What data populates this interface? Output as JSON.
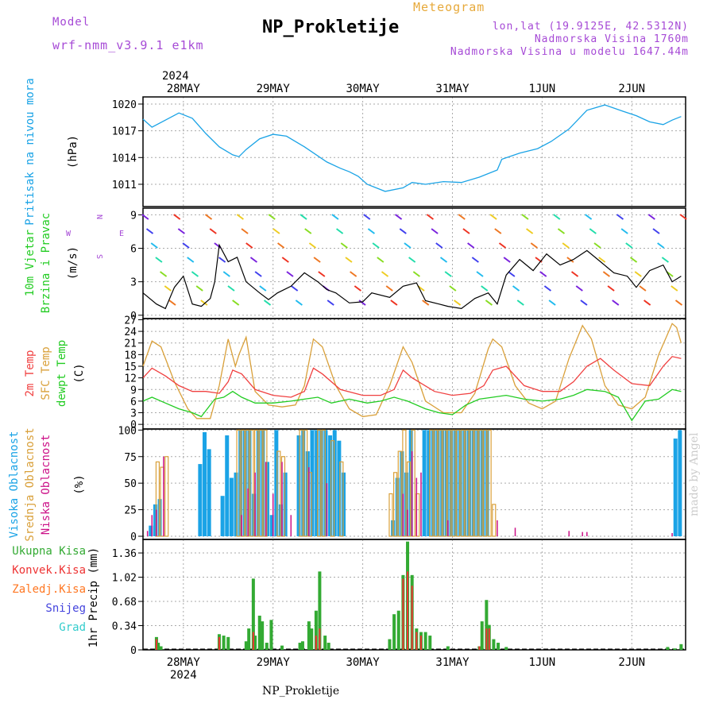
{
  "header": {
    "model_label": "Model",
    "model_name": "wrf-nmm_v3.9.1 e1km",
    "title": "NP_Prokletije",
    "meteogram": "Meteogram",
    "lonlat": "lon,lat (19.9125E, 42.5312N)",
    "altitude": "Nadmorska Visina 1760m",
    "model_altitude": "Nadmorska Visina u modelu 1647.44m"
  },
  "footer": {
    "station": "NP_Prokletije",
    "watermark": "made by Angel"
  },
  "colors": {
    "pressure": "#1aa3e6",
    "wind_label": "#22cc22",
    "temp2m": "#f04040",
    "sfc": "#d9a03a",
    "dewpt": "#22cc22",
    "high_cloud": "#1aa3e6",
    "mid_cloud": "#d9a03a",
    "low_cloud": "#cc1188",
    "total_precip": "#33aa33",
    "conv_precip": "#ee3333",
    "frozen": "#ff7722",
    "snow": "#4444dd",
    "graupel": "#33cccc"
  },
  "chart_data": [
    {
      "type": "line",
      "title": "",
      "ylabel": [
        "Pritisak na nivou mora",
        "(hPa)"
      ],
      "yticks": [
        "1011",
        "1014",
        "1017",
        "1020"
      ],
      "ylim": [
        1008.5,
        1020.8
      ],
      "xlim": [
        -0.45,
        5.6
      ],
      "top_ticks": {
        "year": "2024",
        "labels": [
          "28MAY",
          "29MAY",
          "30MAY",
          "31MAY",
          "1JUN",
          "2JUN"
        ]
      },
      "series": [
        {
          "x": [
            -0.45,
            -0.35,
            -0.2,
            -0.05,
            0.1,
            0.25,
            0.4,
            0.55,
            0.62,
            0.7,
            0.85,
            1.0,
            1.15,
            1.35,
            1.6,
            1.75,
            1.85,
            1.95,
            2.05,
            2.25,
            2.45,
            2.55,
            2.7,
            2.9,
            3.1,
            3.3,
            3.5,
            3.55,
            3.75,
            3.95,
            4.1,
            4.3,
            4.5,
            4.7,
            4.9,
            5.05,
            5.2,
            5.35,
            5.45,
            5.55
          ],
          "values": [
            1018.3,
            1017.4,
            1018.2,
            1019.0,
            1018.4,
            1016.7,
            1015.2,
            1014.3,
            1014.1,
            1014.9,
            1016.1,
            1016.6,
            1016.4,
            1015.2,
            1013.5,
            1012.8,
            1012.4,
            1011.9,
            1011.0,
            1010.2,
            1010.6,
            1011.2,
            1011.0,
            1011.3,
            1011.2,
            1011.8,
            1012.6,
            1013.8,
            1014.5,
            1015.0,
            1015.8,
            1017.2,
            1019.3,
            1019.9,
            1019.2,
            1018.7,
            1018.0,
            1017.7,
            1018.2,
            1018.6
          ]
        }
      ]
    },
    {
      "type": "line",
      "title": "",
      "ylabel": [
        "10m Vjetar",
        "Brzina i Pravac",
        "(m/s)"
      ],
      "compass": {
        "n": "N",
        "s": "S",
        "w": "W",
        "e": "E"
      },
      "yticks": [
        "0",
        "3",
        "6",
        "9"
      ],
      "ylim": [
        -0.3,
        9.6
      ],
      "series": [
        {
          "name": "",
          "x": [
            -0.45,
            -0.3,
            -0.2,
            -0.1,
            0.0,
            0.1,
            0.2,
            0.3,
            0.35,
            0.4,
            0.5,
            0.6,
            0.7,
            0.85,
            0.95,
            1.05,
            1.2,
            1.35,
            1.5,
            1.6,
            1.7,
            1.85,
            2.0,
            2.1,
            2.3,
            2.45,
            2.6,
            2.7,
            2.85,
            2.95,
            3.1,
            3.25,
            3.4,
            3.5,
            3.6,
            3.75,
            3.9,
            4.05,
            4.2,
            4.35,
            4.5,
            4.65,
            4.8,
            4.95,
            5.05,
            5.2,
            5.35,
            5.45,
            5.55
          ],
          "values": [
            2.0,
            1.0,
            0.6,
            2.5,
            3.5,
            1.0,
            0.8,
            1.5,
            3.0,
            6.3,
            4.8,
            5.2,
            3.0,
            2.0,
            1.4,
            2.0,
            2.6,
            3.8,
            3.0,
            2.3,
            2.0,
            1.1,
            1.2,
            2.0,
            1.6,
            2.6,
            2.9,
            1.3,
            1.0,
            0.8,
            0.6,
            1.5,
            2.0,
            1.0,
            3.6,
            5.0,
            4.0,
            5.5,
            4.5,
            5.0,
            5.8,
            4.8,
            3.8,
            3.5,
            2.5,
            4.0,
            4.5,
            3.0,
            3.5
          ]
        }
      ]
    },
    {
      "type": "line",
      "title": "",
      "ylabel": [
        "2m Temp",
        "SFC Temp",
        "dewpt Temp",
        "(C)"
      ],
      "yticks": [
        "0",
        "3",
        "6",
        "9",
        "12",
        "15",
        "18",
        "21",
        "24",
        "27"
      ],
      "ylim": [
        -1.2,
        27.3
      ],
      "series": [
        {
          "name": "2m Temp",
          "x": [
            -0.45,
            -0.35,
            -0.2,
            -0.05,
            0.1,
            0.25,
            0.4,
            0.5,
            0.55,
            0.65,
            0.8,
            1.0,
            1.2,
            1.35,
            1.45,
            1.55,
            1.75,
            2.0,
            2.2,
            2.35,
            2.45,
            2.55,
            2.8,
            3.0,
            3.2,
            3.35,
            3.45,
            3.6,
            3.8,
            4.0,
            4.2,
            4.35,
            4.5,
            4.65,
            4.8,
            5.0,
            5.2,
            5.35,
            5.45,
            5.55
          ],
          "values": [
            12.0,
            14.5,
            12.5,
            10.0,
            8.5,
            8.5,
            8.0,
            11.0,
            14.0,
            13.0,
            9.0,
            7.5,
            7.0,
            8.5,
            14.5,
            13.0,
            9.0,
            7.5,
            7.5,
            9.0,
            14.0,
            12.0,
            8.5,
            7.5,
            8.0,
            10.0,
            14.0,
            15.0,
            10.0,
            8.5,
            8.5,
            11.0,
            15.0,
            17.0,
            14.0,
            10.5,
            10.0,
            15.0,
            17.5,
            17.0
          ]
        },
        {
          "name": "SFC Temp",
          "x": [
            -0.45,
            -0.35,
            -0.25,
            -0.1,
            0.05,
            0.15,
            0.3,
            0.4,
            0.5,
            0.58,
            0.62,
            0.7,
            0.8,
            0.95,
            1.1,
            1.25,
            1.35,
            1.45,
            1.55,
            1.7,
            1.85,
            2.0,
            2.15,
            2.3,
            2.45,
            2.55,
            2.7,
            2.9,
            3.1,
            3.25,
            3.4,
            3.45,
            3.55,
            3.7,
            3.85,
            4.0,
            4.15,
            4.3,
            4.45,
            4.55,
            4.7,
            4.85,
            5.0,
            5.15,
            5.3,
            5.45,
            5.5,
            5.55
          ],
          "values": [
            15.0,
            21.5,
            20.0,
            11.0,
            4.0,
            1.5,
            1.5,
            10.0,
            22.0,
            15.0,
            18.0,
            22.5,
            8.5,
            5.0,
            4.5,
            5.0,
            10.0,
            22.0,
            20.0,
            10.0,
            4.0,
            2.0,
            2.5,
            10.0,
            20.0,
            16.0,
            6.0,
            3.0,
            3.0,
            8.0,
            19.5,
            22.0,
            20.0,
            10.0,
            5.5,
            4.0,
            6.0,
            17.0,
            25.5,
            22.0,
            10.0,
            5.0,
            4.0,
            7.0,
            18.0,
            26.0,
            25.0,
            21.0
          ]
        },
        {
          "name": "dewpt Temp",
          "x": [
            -0.45,
            -0.35,
            -0.2,
            -0.05,
            0.1,
            0.2,
            0.35,
            0.45,
            0.55,
            0.65,
            0.8,
            1.0,
            1.2,
            1.35,
            1.5,
            1.65,
            1.85,
            2.05,
            2.2,
            2.35,
            2.5,
            2.7,
            2.85,
            3.0,
            3.15,
            3.3,
            3.45,
            3.6,
            3.8,
            4.0,
            4.2,
            4.35,
            4.5,
            4.7,
            4.85,
            5.0,
            5.15,
            5.3,
            5.45,
            5.55
          ],
          "values": [
            6.0,
            7.0,
            5.5,
            4.0,
            3.0,
            2.0,
            6.5,
            7.0,
            8.5,
            7.0,
            5.5,
            5.5,
            6.0,
            6.5,
            7.0,
            5.5,
            6.5,
            5.5,
            6.0,
            7.0,
            6.0,
            4.0,
            3.0,
            2.5,
            5.0,
            6.5,
            7.0,
            7.5,
            6.5,
            6.0,
            6.5,
            7.5,
            9.0,
            8.5,
            7.0,
            1.0,
            6.0,
            6.5,
            9.0,
            8.5
          ]
        }
      ]
    },
    {
      "type": "bar",
      "title": "",
      "ylabel": [
        "Visoka Oblacnost",
        "Srednja Oblacnost",
        "Niska Oblacnost",
        "(%)"
      ],
      "yticks": [
        "0",
        "25",
        "50",
        "75",
        "100"
      ],
      "ylim": [
        -3,
        101
      ],
      "series": [
        {
          "name": "Visoka Oblacnost",
          "x": [
            -0.35,
            -0.3,
            -0.25,
            0.2,
            0.25,
            0.3,
            0.45,
            0.5,
            0.55,
            0.6,
            0.65,
            0.7,
            0.75,
            0.8,
            0.85,
            0.9,
            0.95,
            1.0,
            1.05,
            1.1,
            1.15,
            1.3,
            1.35,
            1.4,
            1.45,
            1.5,
            1.55,
            1.6,
            1.65,
            1.7,
            1.75,
            1.8,
            2.35,
            2.4,
            2.45,
            2.5,
            2.55,
            2.7,
            2.75,
            2.8,
            2.85,
            2.9,
            2.95,
            3.0,
            3.05,
            3.1,
            3.15,
            3.2,
            3.25,
            3.3,
            3.35,
            3.4,
            5.5,
            5.55
          ],
          "values": [
            10,
            30,
            35,
            68,
            98,
            82,
            38,
            95,
            55,
            60,
            100,
            100,
            100,
            40,
            100,
            100,
            70,
            20,
            100,
            30,
            60,
            95,
            100,
            80,
            100,
            100,
            100,
            100,
            95,
            100,
            90,
            60,
            15,
            55,
            80,
            60,
            100,
            100,
            100,
            100,
            100,
            100,
            100,
            100,
            100,
            100,
            100,
            100,
            100,
            100,
            100,
            100,
            92,
            100
          ]
        },
        {
          "name": "Srednja Oblacnost",
          "x": [
            -0.3,
            -0.25,
            -0.2,
            0.6,
            0.65,
            0.7,
            0.75,
            0.8,
            0.85,
            0.9,
            1.05,
            1.1,
            1.3,
            1.35,
            1.4,
            1.5,
            1.55,
            1.65,
            1.75,
            2.3,
            2.35,
            2.4,
            2.45,
            2.5,
            2.55,
            2.6,
            2.75,
            2.8,
            2.85,
            2.9,
            2.95,
            3.0,
            3.05,
            3.1,
            3.15,
            3.2,
            3.25,
            3.3,
            3.35,
            3.4,
            3.45
          ],
          "values": [
            70,
            65,
            75,
            100,
            100,
            100,
            100,
            100,
            100,
            100,
            80,
            75,
            100,
            100,
            60,
            100,
            100,
            90,
            70,
            40,
            60,
            80,
            100,
            70,
            100,
            40,
            100,
            100,
            100,
            100,
            100,
            100,
            100,
            100,
            100,
            100,
            100,
            100,
            100,
            100,
            30
          ]
        },
        {
          "name": "Niska Oblacnost",
          "x": [
            -0.4,
            -0.35,
            -0.3,
            -0.22,
            0.65,
            0.72,
            0.8,
            0.92,
            1.0,
            1.1,
            1.2,
            1.4,
            1.6,
            2.45,
            2.5,
            2.55,
            2.6,
            2.65,
            2.95,
            3.5,
            3.7,
            4.3,
            4.45,
            4.5,
            5.45
          ],
          "values": [
            5,
            20,
            25,
            75,
            20,
            45,
            60,
            70,
            40,
            70,
            20,
            65,
            50,
            40,
            25,
            80,
            55,
            60,
            15,
            15,
            8,
            5,
            4,
            4,
            3
          ]
        }
      ]
    },
    {
      "type": "bar",
      "title": "",
      "ylabel": [
        "1hr Precip (mm)"
      ],
      "legend": [
        "Ukupna Kisa",
        "Konvek.Kisa",
        "Zaledj.Kisa",
        "Snijeg",
        "Grad"
      ],
      "yticks": [
        "0",
        "0.34",
        "0.68",
        "1.02",
        "1.36"
      ],
      "ylim": [
        0,
        1.55
      ],
      "bottom_ticks": {
        "labels": [
          "28MAY",
          "29MAY",
          "30MAY",
          "31MAY",
          "1JUN",
          "2JUN"
        ],
        "year": "2024"
      },
      "series": [
        {
          "name": "Ukupna Kisa",
          "x": [
            -0.3,
            -0.28,
            -0.25,
            0.4,
            0.45,
            0.5,
            0.7,
            0.73,
            0.78,
            0.8,
            0.85,
            0.88,
            0.93,
            0.98,
            1.1,
            1.3,
            1.33,
            1.4,
            1.43,
            1.48,
            1.52,
            1.58,
            1.62,
            2.3,
            2.35,
            2.4,
            2.45,
            2.5,
            2.55,
            2.6,
            2.65,
            2.7,
            2.75,
            2.95,
            3.3,
            3.33,
            3.38,
            3.41,
            3.46,
            3.51,
            3.6,
            5.4,
            5.48,
            5.55
          ],
          "values": [
            0.18,
            0.1,
            0.05,
            0.22,
            0.2,
            0.18,
            0.12,
            0.3,
            1.0,
            0.2,
            0.48,
            0.4,
            0.1,
            0.42,
            0.06,
            0.1,
            0.12,
            0.4,
            0.3,
            0.55,
            1.1,
            0.2,
            0.1,
            0.15,
            0.5,
            0.55,
            1.05,
            1.52,
            1.05,
            0.3,
            0.25,
            0.25,
            0.2,
            0.05,
            0.05,
            0.4,
            0.7,
            0.35,
            0.15,
            0.1,
            0.04,
            0.04,
            0.02,
            0.08
          ]
        },
        {
          "name": "Konvek.Kisa",
          "x": [
            -0.3,
            0.4,
            0.78,
            1.48,
            1.52,
            2.45,
            2.5,
            2.55,
            2.6,
            2.65,
            3.3,
            3.38,
            3.41
          ],
          "values": [
            0.15,
            0.18,
            0.25,
            0.2,
            0.3,
            1.0,
            1.1,
            0.9,
            0.25,
            0.2,
            0.05,
            0.3,
            0.3
          ]
        }
      ]
    }
  ]
}
